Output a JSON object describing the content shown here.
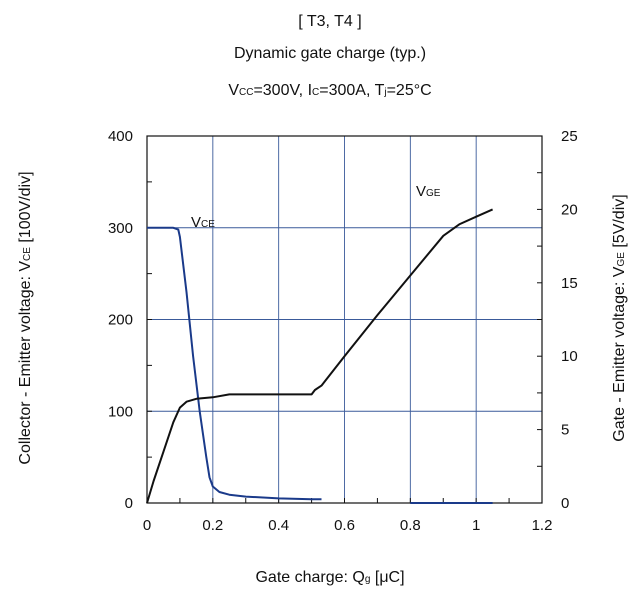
{
  "chart_data": {
    "type": "line",
    "title_lines": [
      "[ T3, T4 ]",
      "Dynamic gate charge  (typ.)",
      "V",
      "CC",
      "=300V, I",
      "C",
      "=300A, T",
      "j",
      "=25°C"
    ],
    "xlabel": {
      "text": "Gate charge: Q",
      "sub": "g",
      "unit": " [μC]"
    },
    "ylabel_left": {
      "text": "Collector - Emitter voltage: V",
      "sub": "CE",
      "unit": " [100V/div]"
    },
    "ylabel_right": {
      "text": "Gate - Emitter voltage:  V",
      "sub": "GE",
      "unit": " [5V/div]"
    },
    "xlim": [
      0,
      1.2
    ],
    "ylim_left": [
      0,
      400
    ],
    "ylim_right": [
      0,
      25
    ],
    "x_ticks": [
      "0",
      "0.2",
      "0.4",
      "0.6",
      "0.8",
      "1",
      "1.2"
    ],
    "y_left_ticks": [
      "0",
      "100",
      "200",
      "300",
      "400"
    ],
    "y_right_ticks": [
      "0",
      "5",
      "10",
      "15",
      "20",
      "25"
    ],
    "grid": true,
    "series": [
      {
        "name": "VCE",
        "label_main": "V",
        "label_sub": "CE",
        "axis": "left",
        "color": "#1a3a8a",
        "x": [
          0,
          0.08,
          0.095,
          0.1,
          0.12,
          0.14,
          0.16,
          0.18,
          0.19,
          0.2,
          0.22,
          0.25,
          0.3,
          0.4,
          0.5,
          0.53
        ],
        "y": [
          300,
          300,
          298,
          290,
          230,
          160,
          100,
          50,
          28,
          18,
          12,
          9,
          7,
          5,
          4,
          4
        ]
      },
      {
        "name": "VCE-tail",
        "axis": "left",
        "color": "#1a3a8a",
        "x": [
          0.8,
          1.05
        ],
        "y": [
          0,
          0
        ]
      },
      {
        "name": "VGE",
        "label_main": "V",
        "label_sub": "GE",
        "axis": "right",
        "color": "#111111",
        "x": [
          0,
          0.02,
          0.05,
          0.08,
          0.1,
          0.12,
          0.15,
          0.2,
          0.25,
          0.3,
          0.4,
          0.5,
          0.51,
          0.53,
          0.6,
          0.7,
          0.8,
          0.9,
          0.95,
          1.0,
          1.05
        ],
        "y": [
          0,
          1.5,
          3.5,
          5.5,
          6.5,
          6.9,
          7.1,
          7.2,
          7.4,
          7.4,
          7.4,
          7.4,
          7.7,
          8.0,
          10.0,
          12.8,
          15.5,
          18.2,
          19.0,
          19.5,
          20.0
        ]
      }
    ]
  }
}
